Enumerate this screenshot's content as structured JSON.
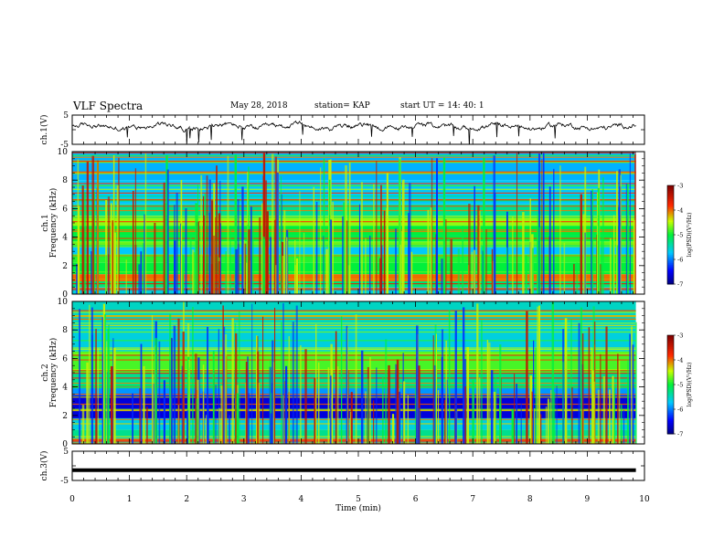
{
  "header": {
    "title": "VLF Spectra",
    "date": "May 28, 2018",
    "station": "station= KAP",
    "start": "start  UT =   14: 40: 1"
  },
  "chart_data": [
    {
      "type": "line",
      "panel": "ch1-waveform",
      "ylabel": "ch.1(V)",
      "ylim": [
        -5,
        5
      ],
      "yticks": [
        "5",
        "-5"
      ],
      "xlim": [
        0,
        10
      ],
      "approx_level": 1.0,
      "approx_fluctuation": 1.5,
      "color": "#000000"
    },
    {
      "type": "heatmap",
      "panel": "ch1-spectrogram",
      "ylabel": "ch.1\nFrequency (kHz)",
      "ylim": [
        0,
        10
      ],
      "yticks": [
        "0",
        "2",
        "4",
        "6",
        "8",
        "10"
      ],
      "xlim": [
        0,
        9.85
      ],
      "colorbar": {
        "label": "log(PSD)(V²/Hz)",
        "range": [
          -7,
          -3
        ],
        "ticks": [
          "-3",
          "-4",
          "-5",
          "-6",
          "-7"
        ]
      },
      "bands": [
        {
          "from": 0,
          "to": 0.5,
          "level": -5.6
        },
        {
          "from": 0.5,
          "to": 0.9,
          "level": -5.2
        },
        {
          "from": 0.9,
          "to": 1.4,
          "level": -4.0
        },
        {
          "from": 1.4,
          "to": 2.2,
          "level": -5.0
        },
        {
          "from": 2.2,
          "to": 2.8,
          "level": -4.9
        },
        {
          "from": 2.8,
          "to": 3.3,
          "level": -5.7
        },
        {
          "from": 3.3,
          "to": 3.7,
          "level": -4.7
        },
        {
          "from": 3.7,
          "to": 4.8,
          "level": -5.0
        },
        {
          "from": 4.8,
          "to": 5.5,
          "level": -4.6
        },
        {
          "from": 5.5,
          "to": 6.3,
          "level": -5.3
        },
        {
          "from": 6.3,
          "to": 8.0,
          "level": -5.7
        },
        {
          "from": 8.0,
          "to": 10.0,
          "level": -5.8
        }
      ]
    },
    {
      "type": "heatmap",
      "panel": "ch2-spectrogram",
      "ylabel": "ch.2\nFrequency (kHz)",
      "ylim": [
        0,
        10
      ],
      "yticks": [
        "0",
        "2",
        "4",
        "6",
        "8",
        "10"
      ],
      "xlim": [
        0,
        9.85
      ],
      "colorbar": {
        "label": "log(PSD)(V²/Hz)",
        "range": [
          -7,
          -3
        ],
        "ticks": [
          "-3",
          "-4",
          "-5",
          "-6",
          "-7"
        ]
      },
      "bands": [
        {
          "from": 0,
          "to": 0.5,
          "level": -5.5
        },
        {
          "from": 0.5,
          "to": 1.0,
          "level": -5.3
        },
        {
          "from": 1.0,
          "to": 1.8,
          "level": -5.6
        },
        {
          "from": 1.8,
          "to": 3.4,
          "level": -6.6
        },
        {
          "from": 3.4,
          "to": 4.0,
          "level": -5.9
        },
        {
          "from": 4.0,
          "to": 5.0,
          "level": -5.3
        },
        {
          "from": 5.0,
          "to": 6.5,
          "level": -4.8
        },
        {
          "from": 6.5,
          "to": 8.5,
          "level": -5.6
        },
        {
          "from": 8.5,
          "to": 10.0,
          "level": -5.5
        }
      ]
    },
    {
      "type": "line",
      "panel": "ch3-waveform",
      "ylabel": "ch.3(V)",
      "ylim": [
        -5,
        5
      ],
      "yticks": [
        "5",
        "-5"
      ],
      "xlim": [
        0,
        10
      ],
      "approx_level": -1.5,
      "color": "#000000",
      "xlabel": "Time (min)",
      "xticks": [
        "0",
        "1",
        "2",
        "3",
        "4",
        "5",
        "6",
        "7",
        "8",
        "9",
        "10"
      ]
    }
  ],
  "colors": {
    "axis": "#000000",
    "colormap": [
      "#000080",
      "#0000ff",
      "#00ffff",
      "#00ff00",
      "#ffff00",
      "#ff0000",
      "#800000"
    ]
  }
}
